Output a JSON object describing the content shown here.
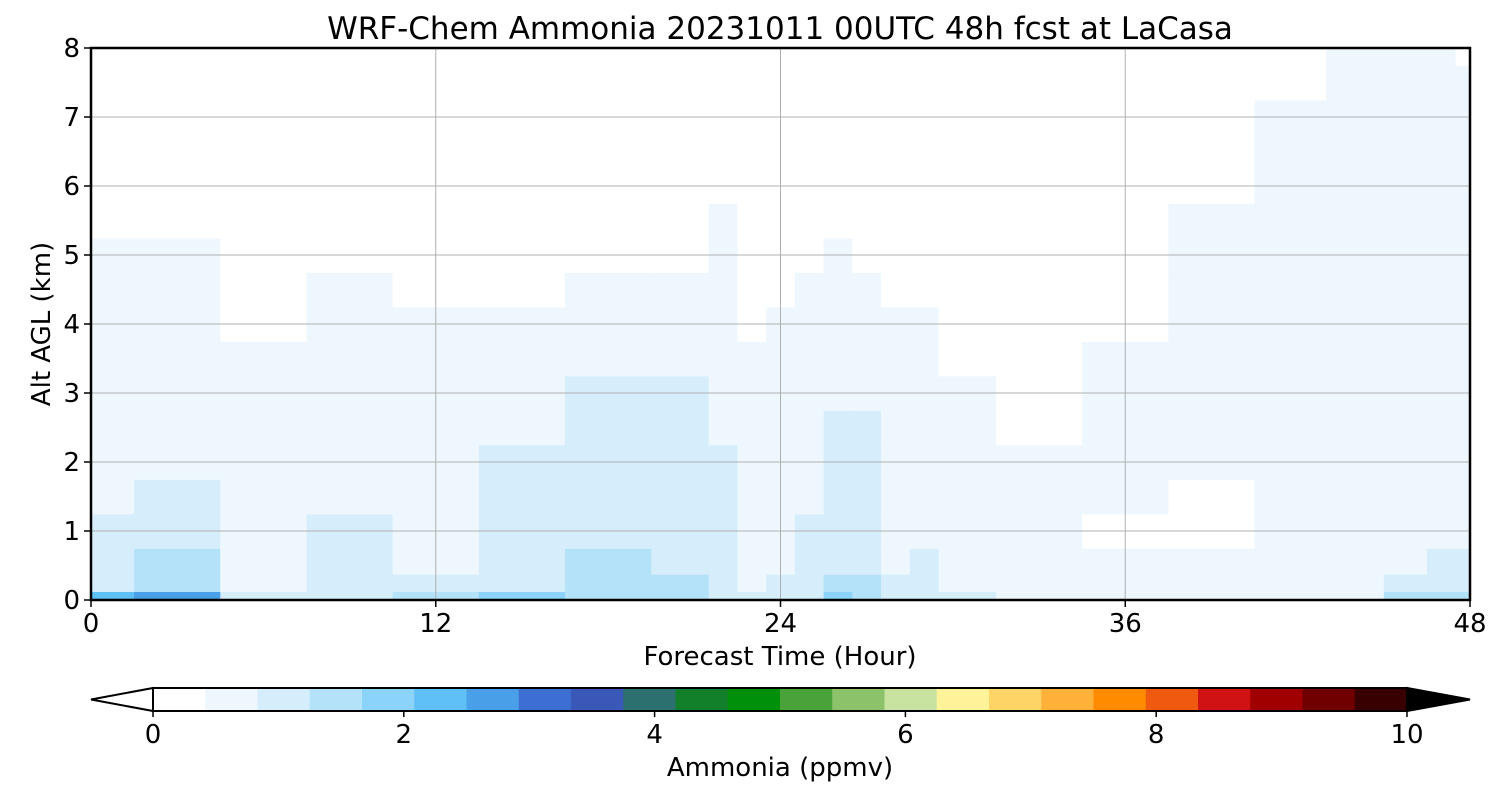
{
  "chart_data": {
    "type": "heatmap",
    "title": "WRF-Chem Ammonia  20231011 00UTC 48h fcst at LaCasa",
    "xlabel": "Forecast Time (Hour)",
    "ylabel": "Alt AGL (km)",
    "xlim": [
      0,
      48
    ],
    "ylim": [
      0,
      8
    ],
    "xticks": [
      "0",
      "12",
      "24",
      "36",
      "48"
    ],
    "yticks": [
      "0",
      "1",
      "2",
      "3",
      "4",
      "5",
      "6",
      "7",
      "8"
    ],
    "grid": true,
    "x_hours": [
      0,
      3,
      6,
      9,
      12,
      15,
      18,
      21,
      22,
      23,
      24,
      25,
      26,
      27,
      28,
      29,
      30,
      33,
      36,
      39,
      42,
      44,
      46,
      47,
      48
    ],
    "y_km": [
      0,
      0.25,
      0.5,
      1,
      1.5,
      2,
      2.5,
      3,
      3.5,
      4,
      4.5,
      5,
      5.5,
      6,
      6.5,
      7,
      7.5,
      8
    ],
    "values_ppmv": [
      [
        2.0,
        0.8,
        0.7,
        0.6,
        0.5,
        0.45,
        0.4,
        0.35,
        0.3,
        0.25,
        0.2,
        0.18,
        0.15,
        0.12,
        0.1,
        0.08,
        0.06,
        0.05
      ],
      [
        2.6,
        1.2,
        1.0,
        0.8,
        0.6,
        0.55,
        0.5,
        0.45,
        0.4,
        0.3,
        0.25,
        0.2,
        0.16,
        0.12,
        0.1,
        0.08,
        0.06,
        0.05
      ],
      [
        0.6,
        0.4,
        0.35,
        0.3,
        0.3,
        0.28,
        0.25,
        0.2,
        0.18,
        0.15,
        0.12,
        0.1,
        0.08,
        0.06,
        0.05,
        0.04,
        0.03,
        0.03
      ],
      [
        0.8,
        0.7,
        0.65,
        0.6,
        0.55,
        0.5,
        0.45,
        0.4,
        0.3,
        0.25,
        0.2,
        0.15,
        0.1,
        0.08,
        0.06,
        0.05,
        0.04,
        0.03
      ],
      [
        1.0,
        0.6,
        0.55,
        0.5,
        0.45,
        0.4,
        0.35,
        0.3,
        0.25,
        0.2,
        0.15,
        0.1,
        0.08,
        0.06,
        0.05,
        0.04,
        0.03,
        0.03
      ],
      [
        1.5,
        0.9,
        0.8,
        0.75,
        0.65,
        0.6,
        0.5,
        0.4,
        0.3,
        0.2,
        0.15,
        0.1,
        0.08,
        0.06,
        0.05,
        0.04,
        0.03,
        0.03
      ],
      [
        1.4,
        1.1,
        1.0,
        0.95,
        0.9,
        0.85,
        0.75,
        0.6,
        0.45,
        0.3,
        0.2,
        0.12,
        0.08,
        0.06,
        0.05,
        0.04,
        0.03,
        0.03
      ],
      [
        1.2,
        1.0,
        0.9,
        0.85,
        0.8,
        0.75,
        0.7,
        0.6,
        0.5,
        0.35,
        0.2,
        0.12,
        0.08,
        0.06,
        0.05,
        0.04,
        0.03,
        0.03
      ],
      [
        0.9,
        0.8,
        0.75,
        0.7,
        0.65,
        0.6,
        0.55,
        0.5,
        0.45,
        0.4,
        0.35,
        0.3,
        0.2,
        0.1,
        0.06,
        0.05,
        0.04,
        0.03
      ],
      [
        0.6,
        0.55,
        0.5,
        0.45,
        0.4,
        0.35,
        0.3,
        0.25,
        0.2,
        0.15,
        0.1,
        0.08,
        0.06,
        0.05,
        0.04,
        0.03,
        0.03,
        0.03
      ],
      [
        0.7,
        0.6,
        0.55,
        0.5,
        0.45,
        0.4,
        0.35,
        0.3,
        0.25,
        0.2,
        0.15,
        0.1,
        0.06,
        0.05,
        0.04,
        0.03,
        0.03,
        0.03
      ],
      [
        0.8,
        0.7,
        0.65,
        0.6,
        0.55,
        0.5,
        0.45,
        0.4,
        0.35,
        0.3,
        0.25,
        0.15,
        0.1,
        0.06,
        0.05,
        0.04,
        0.03,
        0.03
      ],
      [
        1.5,
        1.0,
        0.95,
        0.9,
        0.85,
        0.75,
        0.6,
        0.5,
        0.45,
        0.4,
        0.3,
        0.2,
        0.1,
        0.06,
        0.05,
        0.04,
        0.03,
        0.03
      ],
      [
        1.2,
        1.0,
        0.95,
        0.9,
        0.85,
        0.8,
        0.7,
        0.55,
        0.45,
        0.35,
        0.2,
        0.12,
        0.08,
        0.06,
        0.05,
        0.04,
        0.03,
        0.03
      ],
      [
        0.7,
        0.6,
        0.55,
        0.5,
        0.45,
        0.4,
        0.35,
        0.3,
        0.25,
        0.2,
        0.15,
        0.1,
        0.06,
        0.05,
        0.04,
        0.03,
        0.03,
        0.03
      ],
      [
        0.8,
        0.65,
        0.6,
        0.55,
        0.5,
        0.45,
        0.4,
        0.35,
        0.25,
        0.18,
        0.12,
        0.08,
        0.06,
        0.05,
        0.04,
        0.03,
        0.03,
        0.03
      ],
      [
        0.6,
        0.5,
        0.45,
        0.4,
        0.35,
        0.3,
        0.25,
        0.18,
        0.12,
        0.1,
        0.08,
        0.06,
        0.05,
        0.04,
        0.03,
        0.03,
        0.03,
        0.03
      ],
      [
        0.5,
        0.4,
        0.35,
        0.3,
        0.25,
        0.2,
        0.15,
        0.12,
        0.1,
        0.08,
        0.06,
        0.05,
        0.04,
        0.03,
        0.03,
        0.03,
        0.03,
        0.03
      ],
      [
        0.45,
        0.35,
        0.3,
        0.05,
        0.2,
        0.2,
        0.2,
        0.2,
        0.18,
        0.15,
        0.12,
        0.1,
        0.08,
        0.06,
        0.05,
        0.04,
        0.03,
        0.03
      ],
      [
        0.4,
        0.3,
        0.3,
        0.1,
        0.15,
        0.2,
        0.25,
        0.28,
        0.3,
        0.3,
        0.28,
        0.25,
        0.2,
        0.15,
        0.1,
        0.08,
        0.06,
        0.05
      ],
      [
        0.45,
        0.35,
        0.3,
        0.3,
        0.3,
        0.3,
        0.3,
        0.3,
        0.3,
        0.3,
        0.3,
        0.3,
        0.3,
        0.25,
        0.2,
        0.18,
        0.15,
        0.12
      ],
      [
        0.5,
        0.4,
        0.35,
        0.35,
        0.35,
        0.35,
        0.35,
        0.35,
        0.35,
        0.35,
        0.35,
        0.35,
        0.38,
        0.35,
        0.3,
        0.25,
        0.2,
        0.18
      ],
      [
        1.0,
        0.6,
        0.55,
        0.5,
        0.45,
        0.4,
        0.4,
        0.4,
        0.4,
        0.4,
        0.4,
        0.4,
        0.4,
        0.35,
        0.3,
        0.3,
        0.28,
        0.25
      ],
      [
        1.2,
        0.8,
        0.65,
        0.55,
        0.5,
        0.45,
        0.4,
        0.4,
        0.4,
        0.4,
        0.4,
        0.4,
        0.35,
        0.3,
        0.3,
        0.28,
        0.25,
        0.2
      ],
      [
        1.3,
        0.9,
        0.7,
        0.55,
        0.5,
        0.45,
        0.4,
        0.4,
        0.4,
        0.4,
        0.38,
        0.35,
        0.3,
        0.25,
        0.2,
        0.2,
        0.18,
        0.15
      ]
    ],
    "colorbar": {
      "label": "Ammonia  (ppmv)",
      "ticks": [
        "0",
        "2",
        "4",
        "6",
        "8",
        "10"
      ],
      "range": [
        0,
        10
      ],
      "extend": "both",
      "colors": [
        "#ffffff",
        "#eef7fd",
        "#d6eefb",
        "#b4e2f9",
        "#8bd3f9",
        "#5fc0f7",
        "#4a9fe9",
        "#3c6fd1",
        "#3a58b8",
        "#2c7070",
        "#12802a",
        "#00900a",
        "#4aa33a",
        "#8cc26a",
        "#c8e2a0",
        "#fff39a",
        "#ffd467",
        "#ffb13a",
        "#ff8c00",
        "#f05a10",
        "#d01212",
        "#a00000",
        "#700000",
        "#380000",
        "#000000"
      ]
    }
  }
}
